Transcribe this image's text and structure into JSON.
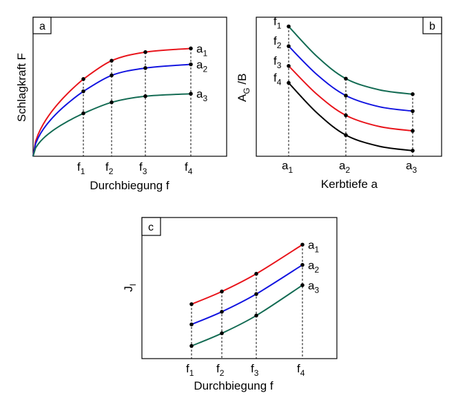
{
  "colors": {
    "red": "#e8141b",
    "blue": "#1214e0",
    "green": "#136b53",
    "black": "#000000"
  },
  "chart_data": [
    {
      "panel": "a",
      "type": "line",
      "xlabel": "Durchbiegung f",
      "ylabel": "Schlagkraft F",
      "x_ticks": [
        {
          "base": "f",
          "sub": "1",
          "x": 1
        },
        {
          "base": "f",
          "sub": "2",
          "x": 2
        },
        {
          "base": "f",
          "sub": "3",
          "x": 3
        },
        {
          "base": "f",
          "sub": "4",
          "x": 4
        }
      ],
      "xlim": [
        0,
        4.5
      ],
      "ylim": [
        0,
        1
      ],
      "guides": "vertical",
      "series": [
        {
          "name_base": "a",
          "name_sub": "1",
          "color": "red",
          "x": [
            0,
            1,
            2,
            3,
            4
          ],
          "y": [
            0,
            0.63,
            0.78,
            0.85,
            0.88
          ]
        },
        {
          "name_base": "a",
          "name_sub": "2",
          "color": "blue",
          "x": [
            0,
            1,
            2,
            3,
            4
          ],
          "y": [
            0,
            0.53,
            0.66,
            0.72,
            0.75
          ]
        },
        {
          "name_base": "a",
          "name_sub": "3",
          "color": "green",
          "x": [
            0,
            1,
            2,
            3,
            4
          ],
          "y": [
            0,
            0.35,
            0.44,
            0.49,
            0.51
          ]
        }
      ]
    },
    {
      "panel": "b",
      "type": "line",
      "xlabel": "Kerbtiefe a",
      "ylabel_base": "A",
      "ylabel_sub": "G",
      "ylabel_rest": " /B",
      "x_ticks": [
        {
          "base": "a",
          "sub": "1",
          "x": 1
        },
        {
          "base": "a",
          "sub": "2",
          "x": 2
        },
        {
          "base": "a",
          "sub": "3",
          "x": 3
        }
      ],
      "xlim": [
        0.5,
        3.2
      ],
      "ylim": [
        0,
        1
      ],
      "guides": "vertical",
      "series": [
        {
          "name_base": "f",
          "name_sub": "1",
          "color": "green",
          "x": [
            1,
            2,
            3
          ],
          "y": [
            0.92,
            0.55,
            0.44
          ]
        },
        {
          "name_base": "f",
          "name_sub": "2",
          "color": "blue",
          "x": [
            1,
            2,
            3
          ],
          "y": [
            0.78,
            0.43,
            0.32
          ]
        },
        {
          "name_base": "f",
          "name_sub": "3",
          "color": "red",
          "x": [
            1,
            2,
            3
          ],
          "y": [
            0.64,
            0.29,
            0.18
          ]
        },
        {
          "name_base": "f",
          "name_sub": "4",
          "color": "black",
          "x": [
            1,
            2,
            3
          ],
          "y": [
            0.52,
            0.15,
            0.04
          ]
        }
      ]
    },
    {
      "panel": "c",
      "type": "line",
      "xlabel": "Durchbiegung f",
      "ylabel_base": "J",
      "ylabel_sub": "I",
      "x_ticks": [
        {
          "base": "f",
          "sub": "1",
          "x": 1
        },
        {
          "base": "f",
          "sub": "2",
          "x": 2
        },
        {
          "base": "f",
          "sub": "3",
          "x": 3
        },
        {
          "base": "f",
          "sub": "4",
          "x": 4
        }
      ],
      "xlim": [
        0,
        5
      ],
      "ylim": [
        0,
        1
      ],
      "guides": "vertical",
      "series": [
        {
          "name_base": "a",
          "name_sub": "1",
          "color": "red",
          "x": [
            1,
            2,
            3,
            4
          ],
          "y": [
            0.43,
            0.53,
            0.67,
            0.9
          ]
        },
        {
          "name_base": "a",
          "name_sub": "2",
          "color": "blue",
          "x": [
            1,
            2,
            3,
            4
          ],
          "y": [
            0.27,
            0.37,
            0.51,
            0.74
          ]
        },
        {
          "name_base": "a",
          "name_sub": "3",
          "color": "green",
          "x": [
            1,
            2,
            3,
            4
          ],
          "y": [
            0.1,
            0.2,
            0.34,
            0.58
          ]
        }
      ]
    }
  ]
}
